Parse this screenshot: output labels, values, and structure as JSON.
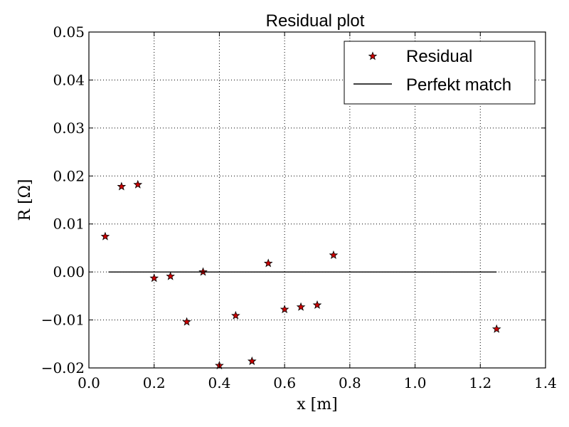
{
  "chart_data": {
    "type": "scatter",
    "title": "Residual plot",
    "xlabel": "x [m]",
    "ylabel": "R [Ω]",
    "xlim": [
      0.0,
      1.4
    ],
    "ylim": [
      -0.02,
      0.05
    ],
    "xticks": [
      0.0,
      0.2,
      0.4,
      0.6,
      0.8,
      1.0,
      1.2,
      1.4
    ],
    "xtick_labels": [
      "0.0",
      "0.2",
      "0.4",
      "0.6",
      "0.8",
      "1.0",
      "1.2",
      "1.4"
    ],
    "yticks": [
      -0.02,
      -0.01,
      0.0,
      0.01,
      0.02,
      0.03,
      0.04,
      0.05
    ],
    "ytick_labels": [
      "−0.02",
      "−0.01",
      "0.00",
      "0.01",
      "0.02",
      "0.03",
      "0.04",
      "0.05"
    ],
    "grid": true,
    "legend_position": "top-right",
    "series": [
      {
        "name": "Residual",
        "kind": "scatter",
        "marker": "star",
        "color": "#cc0000",
        "x": [
          0.05,
          0.1,
          0.15,
          0.2,
          0.25,
          0.3,
          0.35,
          0.4,
          0.45,
          0.5,
          0.55,
          0.6,
          0.65,
          0.7,
          0.75,
          1.25
        ],
        "y": [
          0.0074,
          0.0178,
          0.0182,
          -0.0013,
          -0.0009,
          -0.0104,
          0.0,
          -0.0195,
          -0.0091,
          -0.0186,
          0.0018,
          -0.0078,
          -0.0073,
          -0.0069,
          0.0035,
          -0.0119
        ]
      },
      {
        "name": "Perfekt match",
        "kind": "line",
        "color": "#000000",
        "x": [
          0.06,
          1.25
        ],
        "y": [
          0.0,
          0.0
        ]
      }
    ]
  }
}
